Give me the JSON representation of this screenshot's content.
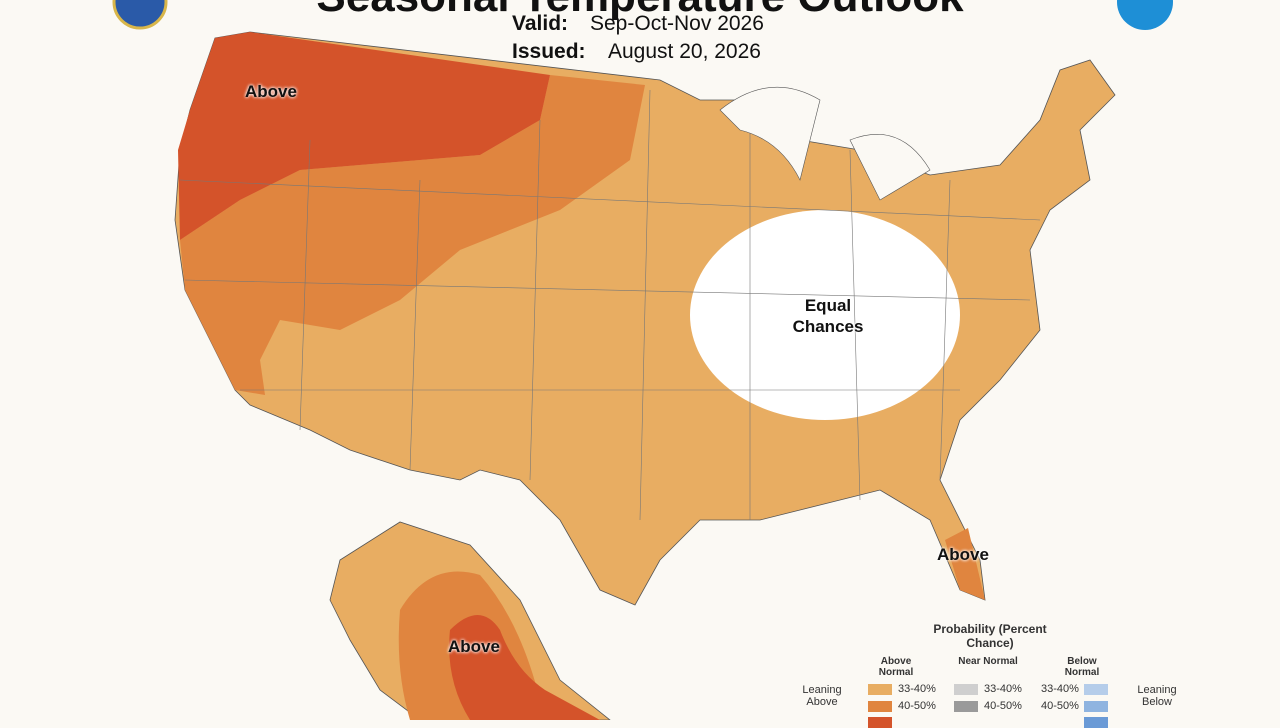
{
  "header": {
    "title": "Seasonal Temperature Outlook",
    "valid_label": "Valid:",
    "valid": "Sep-Oct-Nov 2026",
    "issued_label": "Issued:",
    "issued": "August 20, 2026"
  },
  "map": {
    "labels": [
      "Above",
      "Equal Chances",
      "Above",
      "Above"
    ]
  },
  "legend": {
    "title": "Probability (Percent Chance)",
    "columns": [
      "Above Normal",
      "Near Normal",
      "Below Normal"
    ],
    "left_note": "Leaning Above",
    "right_note": "Leaning Below",
    "rows": [
      "33-40%",
      "40-50%"
    ]
  }
}
